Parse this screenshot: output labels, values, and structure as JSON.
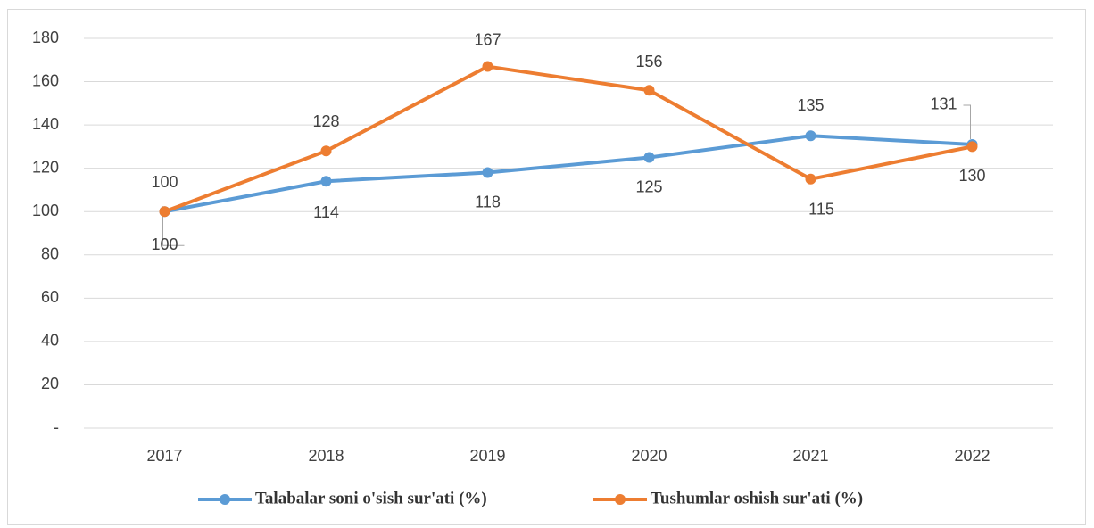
{
  "chart_data": {
    "type": "line",
    "categories": [
      "2017",
      "2018",
      "2019",
      "2020",
      "2021",
      "2022"
    ],
    "series": [
      {
        "name": "Talabalar soni o'sish sur'ati (%)",
        "color": "#5b9bd5",
        "values": [
          100,
          114,
          118,
          125,
          135,
          131
        ]
      },
      {
        "name": "Tushumlar oshish sur'ati (%)",
        "color": "#ed7d31",
        "values": [
          100,
          128,
          167,
          156,
          115,
          130
        ]
      }
    ],
    "ylim": [
      0,
      180
    ],
    "yticks": [
      {
        "value": 0,
        "label": "-"
      },
      20,
      40,
      60,
      80,
      100,
      120,
      140,
      160,
      180
    ],
    "grid": true,
    "legend": "bottom"
  }
}
